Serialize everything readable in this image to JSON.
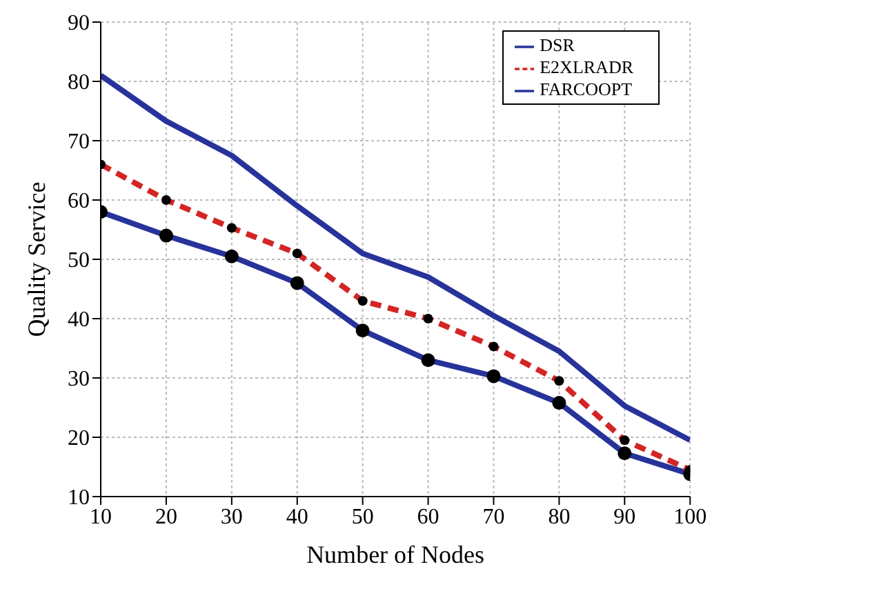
{
  "chart_data": {
    "type": "line",
    "xlabel": "Number of Nodes",
    "ylabel": "Quality Service",
    "x": [
      10,
      20,
      30,
      40,
      50,
      60,
      70,
      80,
      90,
      100
    ],
    "xlim": [
      10,
      100
    ],
    "xticks": [
      10,
      20,
      30,
      40,
      50,
      60,
      70,
      80,
      90,
      100
    ],
    "ylim": [
      10,
      90
    ],
    "yticks": [
      10,
      20,
      30,
      40,
      50,
      60,
      70,
      80,
      90
    ],
    "grid": true,
    "legend": "top right",
    "series": [
      {
        "name": "DSR",
        "color": "#27339a",
        "marker": "circle",
        "line_style": "solid",
        "values": [
          58,
          54,
          50.5,
          46,
          38,
          33,
          30.3,
          25.8,
          17.3,
          13.8
        ]
      },
      {
        "name": "E2XLRADR",
        "color": "#d42424",
        "marker": "circle",
        "line_style": "dashed",
        "values": [
          66,
          60,
          55.3,
          51,
          43,
          40,
          35.3,
          29.5,
          19.5,
          14.5
        ]
      },
      {
        "name": "FARCOOPT",
        "color": "#27339a",
        "marker": "none",
        "line_style": "solid",
        "values": [
          81,
          73.3,
          67.5,
          59,
          51,
          47,
          40.5,
          34.5,
          25.3,
          19.5
        ]
      }
    ]
  }
}
